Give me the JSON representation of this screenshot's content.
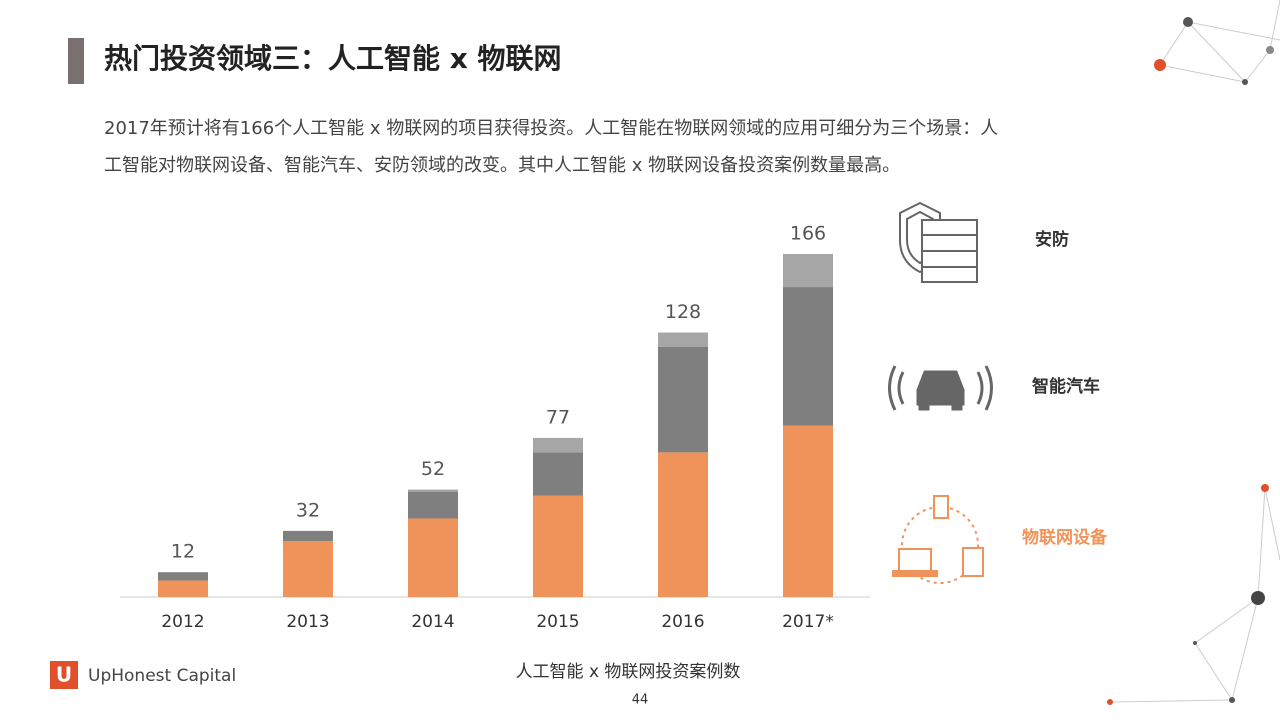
{
  "slide_title": "热门投资领域三：人工智能 x 物联网",
  "intro": [
    "2017年预计将有166个人工智能 x 物联网的项目获得投资。人工智能在物联网领域的应用可细分为三个场景：人",
    "工智能对物联网设备、智能汽车、安防领域的改变。其中人工智能 x 物联网设备投资案例数量最高。"
  ],
  "chart_data": {
    "type": "stacked_bar",
    "x_label": "人工智能 x 物联网投资案例数",
    "categories": [
      "2012",
      "2013",
      "2014",
      "2015",
      "2016",
      "2017*"
    ],
    "totals": [
      12,
      32,
      52,
      77,
      128,
      166
    ],
    "series": [
      {
        "name": "物联网设备",
        "color": "#f0935a",
        "values": [
          8,
          27,
          38,
          49,
          70,
          83
        ]
      },
      {
        "name": "智能汽车",
        "color": "#7f7f7f",
        "values": [
          4,
          5,
          13,
          21,
          51,
          67
        ]
      },
      {
        "name": "安防",
        "color": "#a6a6a6",
        "values": [
          0,
          0,
          1,
          7,
          7,
          16
        ]
      }
    ]
  },
  "footer": {
    "logo_mark": "U",
    "logo": "UpHonest Capital",
    "page": "44"
  }
}
